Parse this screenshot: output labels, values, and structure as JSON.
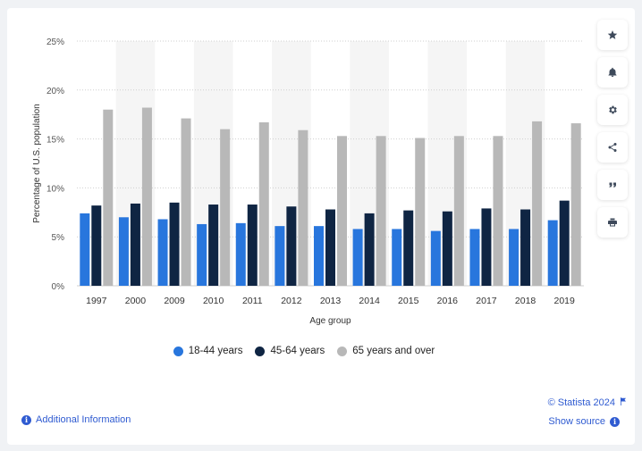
{
  "toolbar": {
    "buttons": [
      {
        "name": "favorite-button",
        "icon": "star-icon"
      },
      {
        "name": "notification-button",
        "icon": "bell-icon"
      },
      {
        "name": "settings-button",
        "icon": "gear-icon"
      },
      {
        "name": "share-button",
        "icon": "share-icon"
      },
      {
        "name": "cite-button",
        "icon": "quote-icon"
      },
      {
        "name": "print-button",
        "icon": "printer-icon"
      }
    ]
  },
  "chart_data": {
    "type": "bar",
    "title": "",
    "xlabel": "Age group",
    "ylabel": "Percentage of U.S. population",
    "categories": [
      "1997",
      "2000",
      "2009",
      "2010",
      "2011",
      "2012",
      "2013",
      "2014",
      "2015",
      "2016",
      "2017",
      "2018",
      "2019"
    ],
    "series": [
      {
        "name": "18-44 years",
        "color": "#2876dd",
        "values": [
          7.4,
          7.0,
          6.8,
          6.3,
          6.4,
          6.1,
          6.1,
          5.8,
          5.8,
          5.6,
          5.8,
          5.8,
          6.7
        ]
      },
      {
        "name": "45-64 years",
        "color": "#0f2543",
        "values": [
          8.2,
          8.4,
          8.5,
          8.3,
          8.3,
          8.1,
          7.8,
          7.4,
          7.7,
          7.6,
          7.9,
          7.8,
          8.7
        ]
      },
      {
        "name": "65 years and over",
        "color": "#b8b8b8",
        "values": [
          18.0,
          18.2,
          17.1,
          16.0,
          16.7,
          15.9,
          15.3,
          15.3,
          15.1,
          15.3,
          15.3,
          16.8,
          16.6
        ]
      }
    ],
    "ylim": [
      0,
      25
    ],
    "yticks": [
      0,
      5,
      10,
      15,
      20,
      25
    ],
    "ytick_labels": [
      "0%",
      "5%",
      "10%",
      "15%",
      "20%",
      "25%"
    ],
    "grid": true,
    "legend_position": "bottom"
  },
  "legend_labels": {
    "s0": "18-44 years",
    "s1": "45-64 years",
    "s2": "65 years and over"
  },
  "footer": {
    "copyright": "© Statista 2024",
    "additional_info": "Additional Information",
    "show_source": "Show source"
  }
}
